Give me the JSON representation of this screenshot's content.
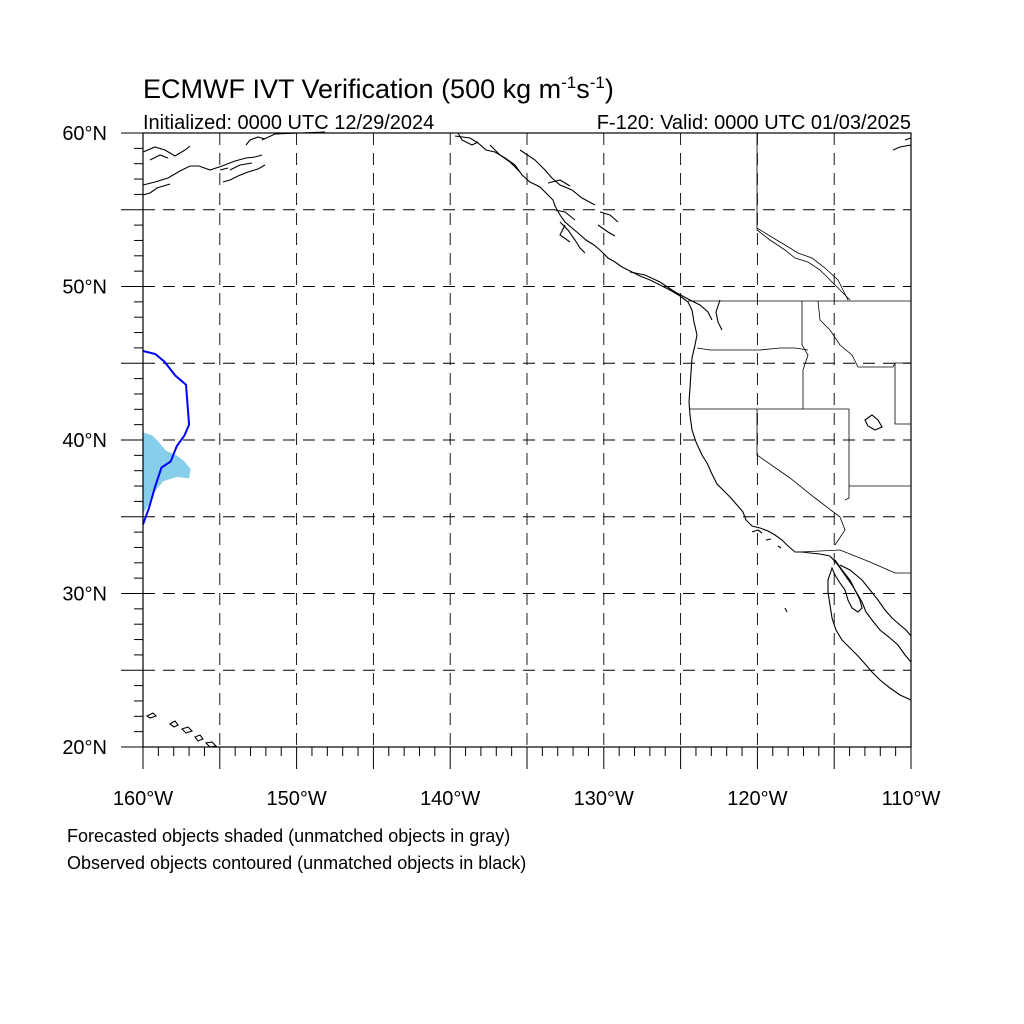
{
  "title": {
    "main": "ECMWF IVT Verification (500 kg m",
    "sup1": "-1",
    "mid": "s",
    "sup2": "-1",
    "end": ")"
  },
  "subtitle_left": "Initialized: 0000 UTC 12/29/2024",
  "subtitle_right": "F-120: Valid: 0000 UTC 01/03/2025",
  "axes": {
    "lon_range": [
      -160,
      -110
    ],
    "lat_range": [
      20,
      60
    ],
    "lon_major": [
      -160,
      -150,
      -140,
      -130,
      -120,
      -110
    ],
    "lat_major": [
      20,
      30,
      40,
      50,
      60
    ],
    "lon_labels": [
      "160°W",
      "150°W",
      "140°W",
      "130°W",
      "120°W",
      "110°W"
    ],
    "lat_labels": [
      "20°N",
      "30°N",
      "40°N",
      "50°N",
      "60°N"
    ],
    "grid_lon": [
      -155,
      -150,
      -145,
      -140,
      -135,
      -130,
      -125,
      -120,
      -115
    ],
    "grid_lat": [
      25,
      30,
      35,
      40,
      45,
      50,
      55
    ]
  },
  "objects": {
    "forecast_fill_color": "#87CEEB",
    "observed_contour_color": "#0000FF",
    "forecast_object": [
      [
        -160,
        40.5
      ],
      [
        -159.4,
        40.3
      ],
      [
        -159.0,
        39.9
      ],
      [
        -158.5,
        39.3
      ],
      [
        -157.8,
        39.0
      ],
      [
        -157.3,
        38.6
      ],
      [
        -156.9,
        38.1
      ],
      [
        -157.0,
        37.5
      ],
      [
        -157.8,
        37.6
      ],
      [
        -158.7,
        37.3
      ],
      [
        -159.2,
        36.7
      ],
      [
        -159.6,
        35.8
      ],
      [
        -160,
        35.2
      ]
    ],
    "observed_object": [
      [
        -160,
        45.8
      ],
      [
        -159.2,
        45.6
      ],
      [
        -158.6,
        45.1
      ],
      [
        -157.9,
        44.2
      ],
      [
        -157.2,
        43.6
      ],
      [
        -157.1,
        42.3
      ],
      [
        -157.0,
        41.0
      ],
      [
        -157.3,
        40.3
      ],
      [
        -157.8,
        39.6
      ],
      [
        -158.2,
        38.6
      ],
      [
        -158.8,
        38.2
      ],
      [
        -159.2,
        37.0
      ],
      [
        -159.6,
        35.6
      ],
      [
        -160,
        34.5
      ]
    ]
  },
  "footnotes": [
    "Forecasted objects shaded (unmatched objects in gray)",
    "Observed objects contoured (unmatched objects in black)"
  ]
}
